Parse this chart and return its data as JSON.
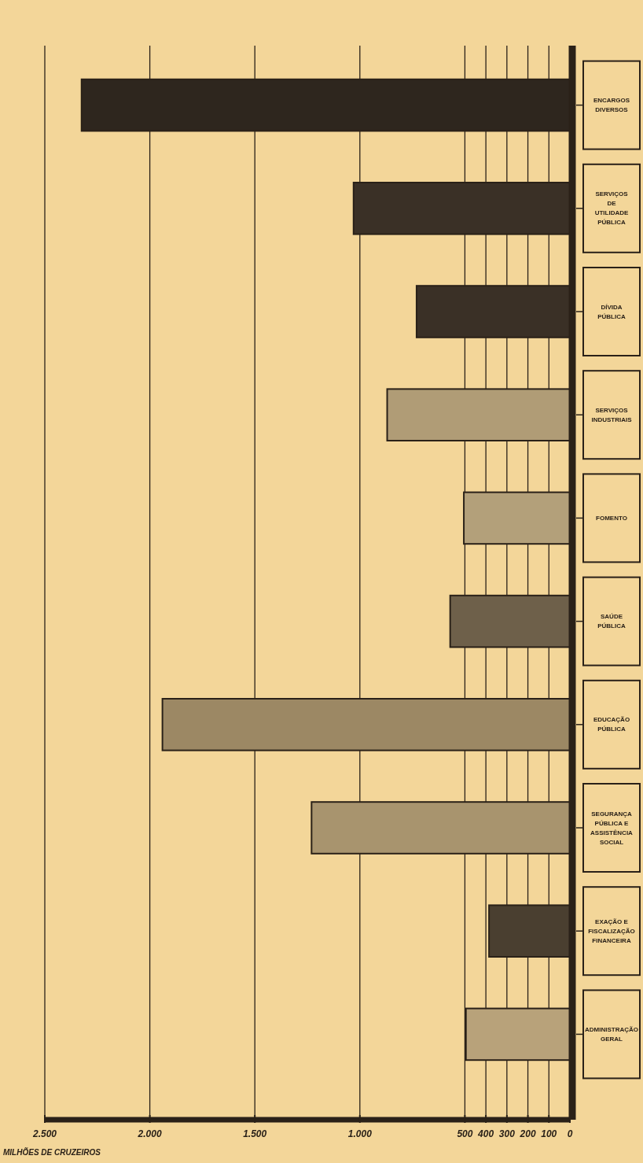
{
  "chart_data": {
    "type": "bar",
    "orientation": "horizontal",
    "xlabel": "MILHÕES DE CRUZEIROS",
    "categories": [
      "ENCARGOS DIVERSOS",
      "SERVIÇOS DE UTILIDADE PÚBLICA",
      "DÍVIDA PÚBLICA",
      "SERVIÇOS INDUSTRIAIS",
      "FOMENTO",
      "SAÚDE PÚBLICA",
      "EDUCAÇÃO PÚBLICA",
      "SEGURANÇA PÚBLICA E ASSISTÊNCIA SOCIAL",
      "EXAÇÃO E FISCALIZAÇÃO FINANCEIRA",
      "ADMINISTRAÇÃO GERAL"
    ],
    "values": [
      2325,
      1030,
      730,
      870,
      505,
      570,
      1940,
      1230,
      385,
      495
    ],
    "colors": [
      "#2e261e",
      "#3a3026",
      "#3a3026",
      "#b09c76",
      "#b3a07a",
      "#6e604a",
      "#9c8864",
      "#a8946e",
      "#4a3f30",
      "#b8a27a"
    ],
    "xlim": [
      2500,
      0
    ],
    "xticks": [
      {
        "value": 2500,
        "label": "2.500"
      },
      {
        "value": 2000,
        "label": "2.000"
      },
      {
        "value": 1500,
        "label": "1.500"
      },
      {
        "value": 1000,
        "label": "1.000"
      },
      500,
      400,
      300,
      200,
      100,
      0
    ],
    "grid": "x"
  }
}
